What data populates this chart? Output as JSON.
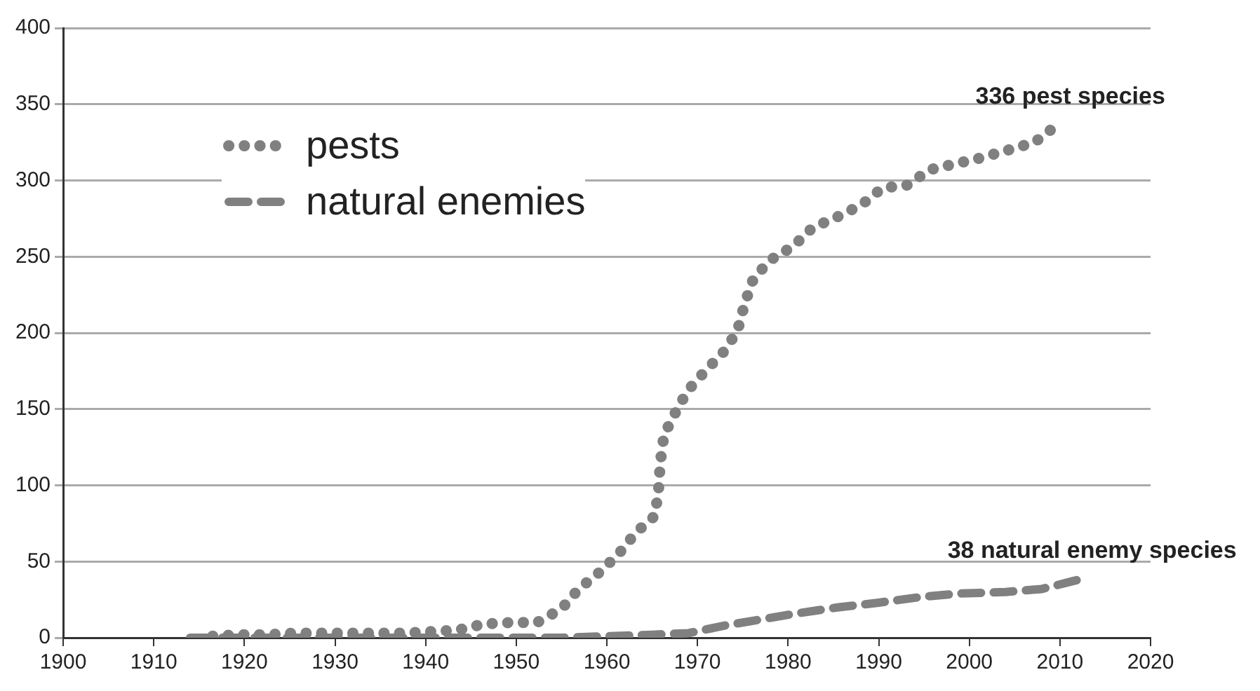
{
  "chart_data": {
    "type": "line",
    "xlim": [
      1900,
      2020
    ],
    "xticks": [
      1900,
      1910,
      1920,
      1930,
      1940,
      1950,
      1960,
      1970,
      1980,
      1990,
      2000,
      2010,
      2020
    ],
    "ylim": [
      0,
      400
    ],
    "yticks": [
      0,
      50,
      100,
      150,
      200,
      250,
      300,
      350,
      400
    ],
    "grid": "y",
    "legend": "top left",
    "marker": "none",
    "series": [
      {
        "name": "pests",
        "color": "#808080",
        "line_style": "dotted",
        "x": [
          1916.5,
          1919.4,
          1922.5,
          1925.4,
          1928.4,
          1931.5,
          1934.5,
          1937.5,
          1940.5,
          1943.5,
          1946.4,
          1949.4,
          1952.3,
          1955,
          1956.9,
          1959.2,
          1961.3,
          1963.2,
          1965.3,
          1965.7,
          1965.9,
          1966.3,
          1967.5,
          1968.9,
          1970.7,
          1972.8,
          1974.4,
          1975.2,
          1976.2,
          1978.1,
          1980.6,
          1982.7,
          1985.4,
          1988.1,
          1990.4,
          1993.2,
          1995.6,
          1998.5,
          2001.4,
          2004.3,
          2007.2,
          2009.6
        ],
        "values": [
          1,
          2,
          2,
          3,
          3,
          3,
          3,
          3,
          4,
          5,
          9,
          10,
          10,
          19,
          32,
          43,
          55,
          69,
          80,
          97,
          115,
          133,
          147,
          162,
          174,
          187,
          201,
          219,
          236,
          248,
          257,
          269,
          276,
          284,
          295,
          297,
          307,
          311,
          315,
          320,
          325,
          336
        ]
      },
      {
        "name": "natural enemies",
        "color": "#808080",
        "line_style": "dashed",
        "x": [
          1914,
          1940,
          1955,
          1960,
          1965,
          1969,
          1973,
          1977,
          1981,
          1985.6,
          1990,
          1995,
          1999,
          2004,
          2008,
          2012
        ],
        "values": [
          0,
          0,
          0,
          1,
          2,
          3,
          8,
          12,
          16,
          20,
          23,
          27,
          29,
          30,
          32,
          38
        ]
      }
    ],
    "annotations": [
      {
        "text": "336 pest species",
        "x": 2009.6,
        "y": 336
      },
      {
        "text": "38 natural enemy species",
        "x": 2012,
        "y": 38
      }
    ]
  }
}
